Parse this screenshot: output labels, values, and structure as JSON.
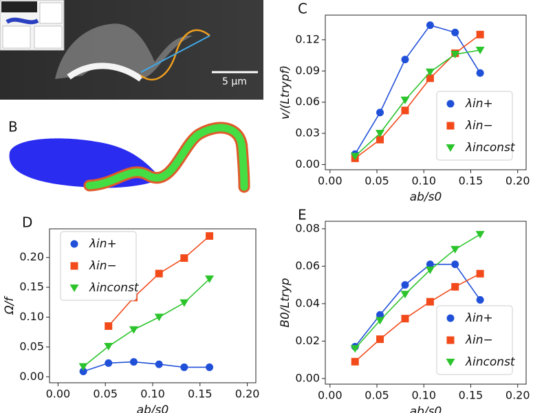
{
  "figure": {
    "panel_b_label": "B",
    "scale_bar": "5 µm"
  },
  "chart_data": [
    {
      "type": "line",
      "label": "C",
      "xlabel": "ab/s0",
      "ylabel": "v/(Ltrypf)",
      "x": [
        0.0267,
        0.0533,
        0.08,
        0.1067,
        0.1333,
        0.16
      ],
      "series": [
        {
          "name": "λin+",
          "color": "#2050d8",
          "marker": "o",
          "values": [
            0.01,
            0.05,
            0.101,
            0.134,
            0.127,
            0.088
          ]
        },
        {
          "name": "λin−",
          "color": "#f24a1a",
          "marker": "s",
          "values": [
            0.006,
            0.024,
            0.052,
            0.083,
            0.107,
            0.125
          ]
        },
        {
          "name": "λinconst",
          "color": "#2cc42c",
          "marker": "v",
          "values": [
            0.008,
            0.03,
            0.062,
            0.089,
            0.106,
            0.11
          ]
        }
      ],
      "xlim": [
        -0.005,
        0.209
      ],
      "ylim": [
        -0.005,
        0.1437
      ],
      "xticks": [
        {
          "value": 0,
          "label": "0.00"
        },
        0.05,
        {
          "value": 0.1,
          "label": "0.10"
        },
        0.15,
        {
          "value": 0.2,
          "label": "0.20"
        }
      ],
      "yticks": [
        {
          "value": 0,
          "label": "0.00"
        },
        0.03,
        0.06,
        0.09,
        0.12
      ],
      "legend": "lower right"
    },
    {
      "type": "line",
      "label": "D",
      "xlabel": "ab/s0",
      "ylabel": "Ω/f",
      "x": [
        0.0267,
        0.0533,
        0.08,
        0.1067,
        0.1333,
        0.16
      ],
      "series": [
        {
          "name": "λin+",
          "color": "#2050d8",
          "marker": "o",
          "values": [
            0.009,
            0.023,
            0.025,
            0.021,
            0.016,
            0.016
          ]
        },
        {
          "name": "λin−",
          "color": "#f24a1a",
          "marker": "s",
          "values": [
            null,
            0.085,
            0.133,
            0.173,
            0.199,
            0.236
          ]
        },
        {
          "name": "λinconst",
          "color": "#2cc42c",
          "marker": "v",
          "values": [
            0.017,
            0.051,
            0.079,
            0.1,
            0.124,
            0.164
          ]
        }
      ],
      "xlim": [
        -0.009,
        0.209
      ],
      "ylim": [
        -0.01,
        0.248
      ],
      "xticks": [
        {
          "value": 0,
          "label": "0.00"
        },
        0.05,
        {
          "value": 0.1,
          "label": "0.10"
        },
        0.15,
        {
          "value": 0.2,
          "label": "0.20"
        }
      ],
      "yticks": [
        {
          "value": 0,
          "label": "0.00"
        },
        0.05,
        {
          "value": 0.1,
          "label": "0.10"
        },
        0.15,
        {
          "value": 0.2,
          "label": "0.20"
        }
      ],
      "legend": "upper left"
    },
    {
      "type": "line",
      "label": "E",
      "xlabel": "ab/s0",
      "ylabel": "B0/Ltryp",
      "x": [
        0.0267,
        0.0533,
        0.08,
        0.1067,
        0.1333,
        0.16
      ],
      "series": [
        {
          "name": "λin+",
          "color": "#2050d8",
          "marker": "o",
          "values": [
            0.017,
            0.034,
            0.05,
            0.061,
            0.061,
            0.042
          ]
        },
        {
          "name": "λin−",
          "color": "#f24a1a",
          "marker": "s",
          "values": [
            0.009,
            0.021,
            0.032,
            0.041,
            0.049,
            0.056
          ]
        },
        {
          "name": "λinconst",
          "color": "#2cc42c",
          "marker": "v",
          "values": [
            0.016,
            0.031,
            0.045,
            0.058,
            0.069,
            0.077
          ]
        }
      ],
      "xlim": [
        -0.005,
        0.209
      ],
      "ylim": [
        -0.003,
        0.084
      ],
      "xticks": [
        {
          "value": 0,
          "label": "0.00"
        },
        0.05,
        {
          "value": 0.1,
          "label": "0.10"
        },
        0.15,
        {
          "value": 0.2,
          "label": "0.20"
        }
      ],
      "yticks": [
        {
          "value": 0,
          "label": "0.00"
        },
        0.02,
        0.04,
        0.06,
        0.08
      ],
      "legend": "lower right"
    }
  ]
}
